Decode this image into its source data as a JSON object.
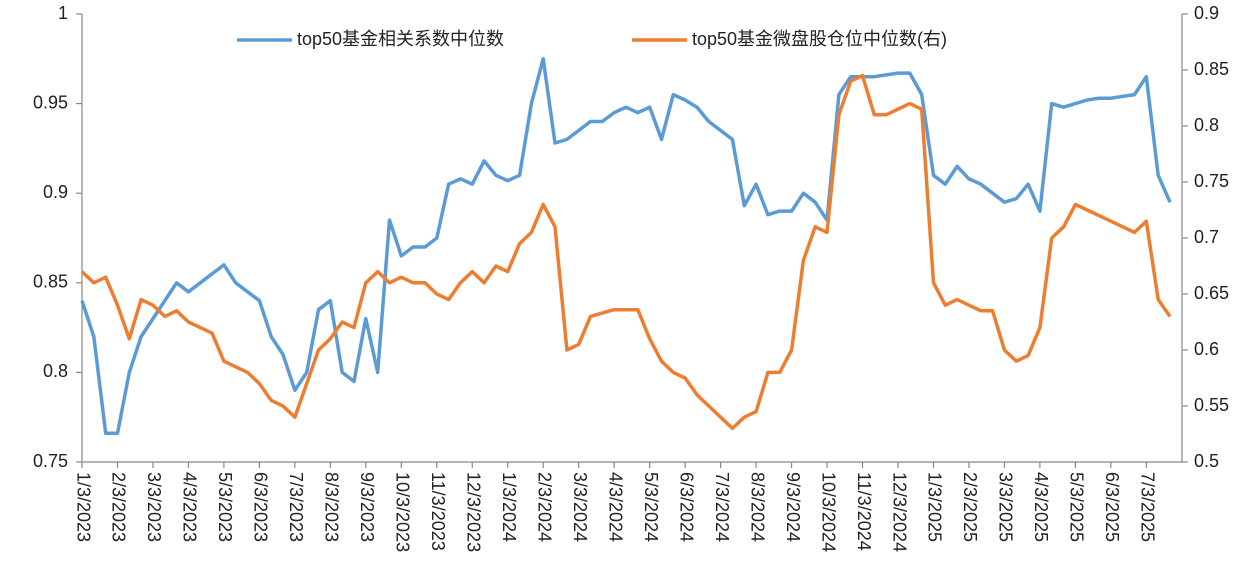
{
  "chart_data": {
    "type": "line",
    "categories": [
      "1/3/2023",
      null,
      null,
      "2/3/2023",
      null,
      null,
      "3/3/2023",
      null,
      null,
      "4/3/2023",
      null,
      null,
      "5/3/2023",
      null,
      null,
      "6/3/2023",
      null,
      null,
      "7/3/2023",
      null,
      null,
      "8/3/2023",
      null,
      null,
      "9/3/2023",
      null,
      null,
      "10/3/2023",
      null,
      null,
      "11/3/2023",
      null,
      null,
      "12/3/2023",
      null,
      null,
      "1/3/2024",
      null,
      null,
      "2/3/2024",
      null,
      null,
      "3/3/2024",
      null,
      null,
      "4/3/2024",
      null,
      null,
      "5/3/2024",
      null,
      null,
      "6/3/2024",
      null,
      null,
      "7/3/2024",
      null,
      null,
      "8/3/2024",
      null,
      null,
      "9/3/2024",
      null,
      null,
      "10/3/2024",
      null,
      null,
      "11/3/2024",
      null,
      null,
      "12/3/2024",
      null,
      null,
      "1/3/2025",
      null,
      null,
      "2/3/2025",
      null,
      null,
      "3/3/2025",
      null,
      null,
      "4/3/2025",
      null,
      null,
      "5/3/2025",
      null,
      null,
      "6/3/2025",
      null,
      null,
      "7/3/2025",
      null,
      null
    ],
    "series": [
      {
        "name": "top50基金相关系数中位数",
        "color": "#5b9bd5",
        "axis": "y",
        "values": [
          0.84,
          0.82,
          0.766,
          0.766,
          0.8,
          0.82,
          0.83,
          0.84,
          0.85,
          0.845,
          0.85,
          0.855,
          0.86,
          0.85,
          0.845,
          0.84,
          0.82,
          0.81,
          0.79,
          0.8,
          0.835,
          0.84,
          0.8,
          0.795,
          0.83,
          0.8,
          0.885,
          0.865,
          0.87,
          0.87,
          0.875,
          0.905,
          0.908,
          0.905,
          0.918,
          0.91,
          0.907,
          0.91,
          0.95,
          0.975,
          0.928,
          0.93,
          0.935,
          0.94,
          0.94,
          0.945,
          0.948,
          0.945,
          0.948,
          0.93,
          0.955,
          0.952,
          0.948,
          0.94,
          0.935,
          0.93,
          0.893,
          0.905,
          0.888,
          0.89,
          0.89,
          0.9,
          0.895,
          0.885,
          0.955,
          0.965,
          0.965,
          0.965,
          0.966,
          0.967,
          0.967,
          0.955,
          0.91,
          0.905,
          0.915,
          0.908,
          0.905,
          0.9,
          0.895,
          0.897,
          0.905,
          0.89,
          0.95,
          0.948,
          0.95,
          0.952,
          0.953,
          0.953,
          0.954,
          0.955,
          0.965,
          0.91,
          0.895
        ]
      },
      {
        "name": "top50基金微盘股仓位中位数(右)",
        "color": "#ed7d31",
        "axis": "y2",
        "values": [
          0.67,
          0.66,
          0.665,
          0.64,
          0.61,
          0.645,
          0.64,
          0.63,
          0.635,
          0.625,
          0.62,
          0.615,
          0.59,
          0.585,
          0.58,
          0.57,
          0.555,
          0.55,
          0.54,
          0.57,
          0.6,
          0.61,
          0.625,
          0.62,
          0.66,
          0.67,
          0.66,
          0.665,
          0.66,
          0.66,
          0.65,
          0.645,
          0.66,
          0.67,
          0.66,
          0.675,
          0.67,
          0.695,
          0.705,
          0.73,
          0.71,
          0.6,
          0.605,
          0.63,
          0.633,
          0.636,
          0.636,
          0.636,
          0.61,
          0.59,
          0.58,
          0.575,
          0.56,
          0.55,
          0.54,
          0.53,
          0.54,
          0.545,
          0.58,
          0.58,
          0.6,
          0.68,
          0.71,
          0.705,
          0.81,
          0.84,
          0.845,
          0.81,
          0.81,
          0.815,
          0.82,
          0.815,
          0.66,
          0.64,
          0.645,
          0.64,
          0.635,
          0.635,
          0.6,
          0.59,
          0.595,
          0.62,
          0.7,
          0.71,
          0.73,
          0.725,
          0.72,
          0.715,
          0.71,
          0.705,
          0.715,
          0.645,
          0.63
        ]
      }
    ],
    "ylim": [
      0.75,
      1
    ],
    "yticks": [
      0.75,
      0.8,
      0.85,
      0.9,
      0.95,
      1
    ],
    "y2lim": [
      0.5,
      0.9
    ],
    "y2ticks": [
      0.5,
      0.55,
      0.6,
      0.65,
      0.7,
      0.75,
      0.8,
      0.85,
      0.9
    ],
    "legend": "top"
  }
}
